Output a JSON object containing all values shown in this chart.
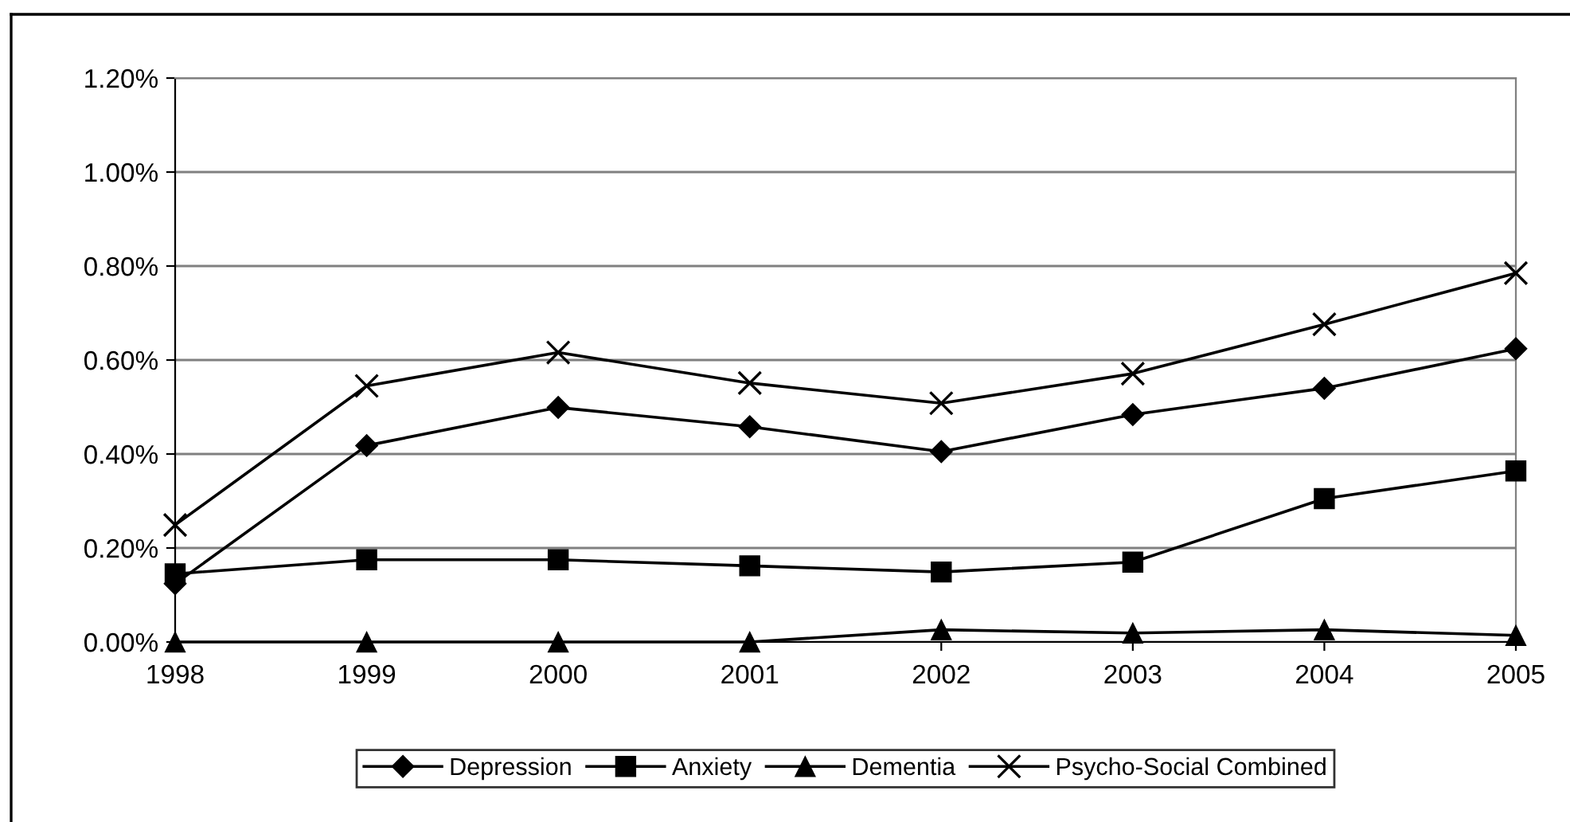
{
  "chart_data": {
    "type": "line",
    "categories": [
      "1998",
      "1999",
      "2000",
      "2001",
      "2002",
      "2003",
      "2004",
      "2005"
    ],
    "series": [
      {
        "name": "Depression",
        "color": "#000000",
        "marker": "diamond",
        "values": [
          0.124,
          0.418,
          0.499,
          0.458,
          0.405,
          0.484,
          0.54,
          0.624
        ]
      },
      {
        "name": "Anxiety",
        "color": "#000000",
        "marker": "square",
        "values": [
          0.145,
          0.175,
          0.175,
          0.162,
          0.149,
          0.17,
          0.305,
          0.364
        ]
      },
      {
        "name": "Dementia",
        "color": "#000000",
        "marker": "triangle",
        "values": [
          0.0,
          0.0,
          0.0,
          0.0,
          0.026,
          0.019,
          0.026,
          0.014
        ]
      },
      {
        "name": "Psycho-Social Combined",
        "color": "#000000",
        "marker": "cross",
        "values": [
          0.249,
          0.545,
          0.616,
          0.551,
          0.508,
          0.571,
          0.676,
          0.785
        ]
      }
    ],
    "ylim": [
      0,
      1.2
    ],
    "yticks": [
      {
        "value": 0,
        "label": "0.00%"
      },
      {
        "value": 0.2,
        "label": "0.20%"
      },
      {
        "value": 0.4,
        "label": "0.40%"
      },
      {
        "value": 0.6,
        "label": "0.60%"
      },
      {
        "value": 0.8,
        "label": "0.80%"
      },
      {
        "value": 1.0,
        "label": "1.00%"
      },
      {
        "value": 1.2,
        "label": "1.20%"
      }
    ],
    "grid": "y",
    "legend": "bottom",
    "line_style": "solid"
  }
}
